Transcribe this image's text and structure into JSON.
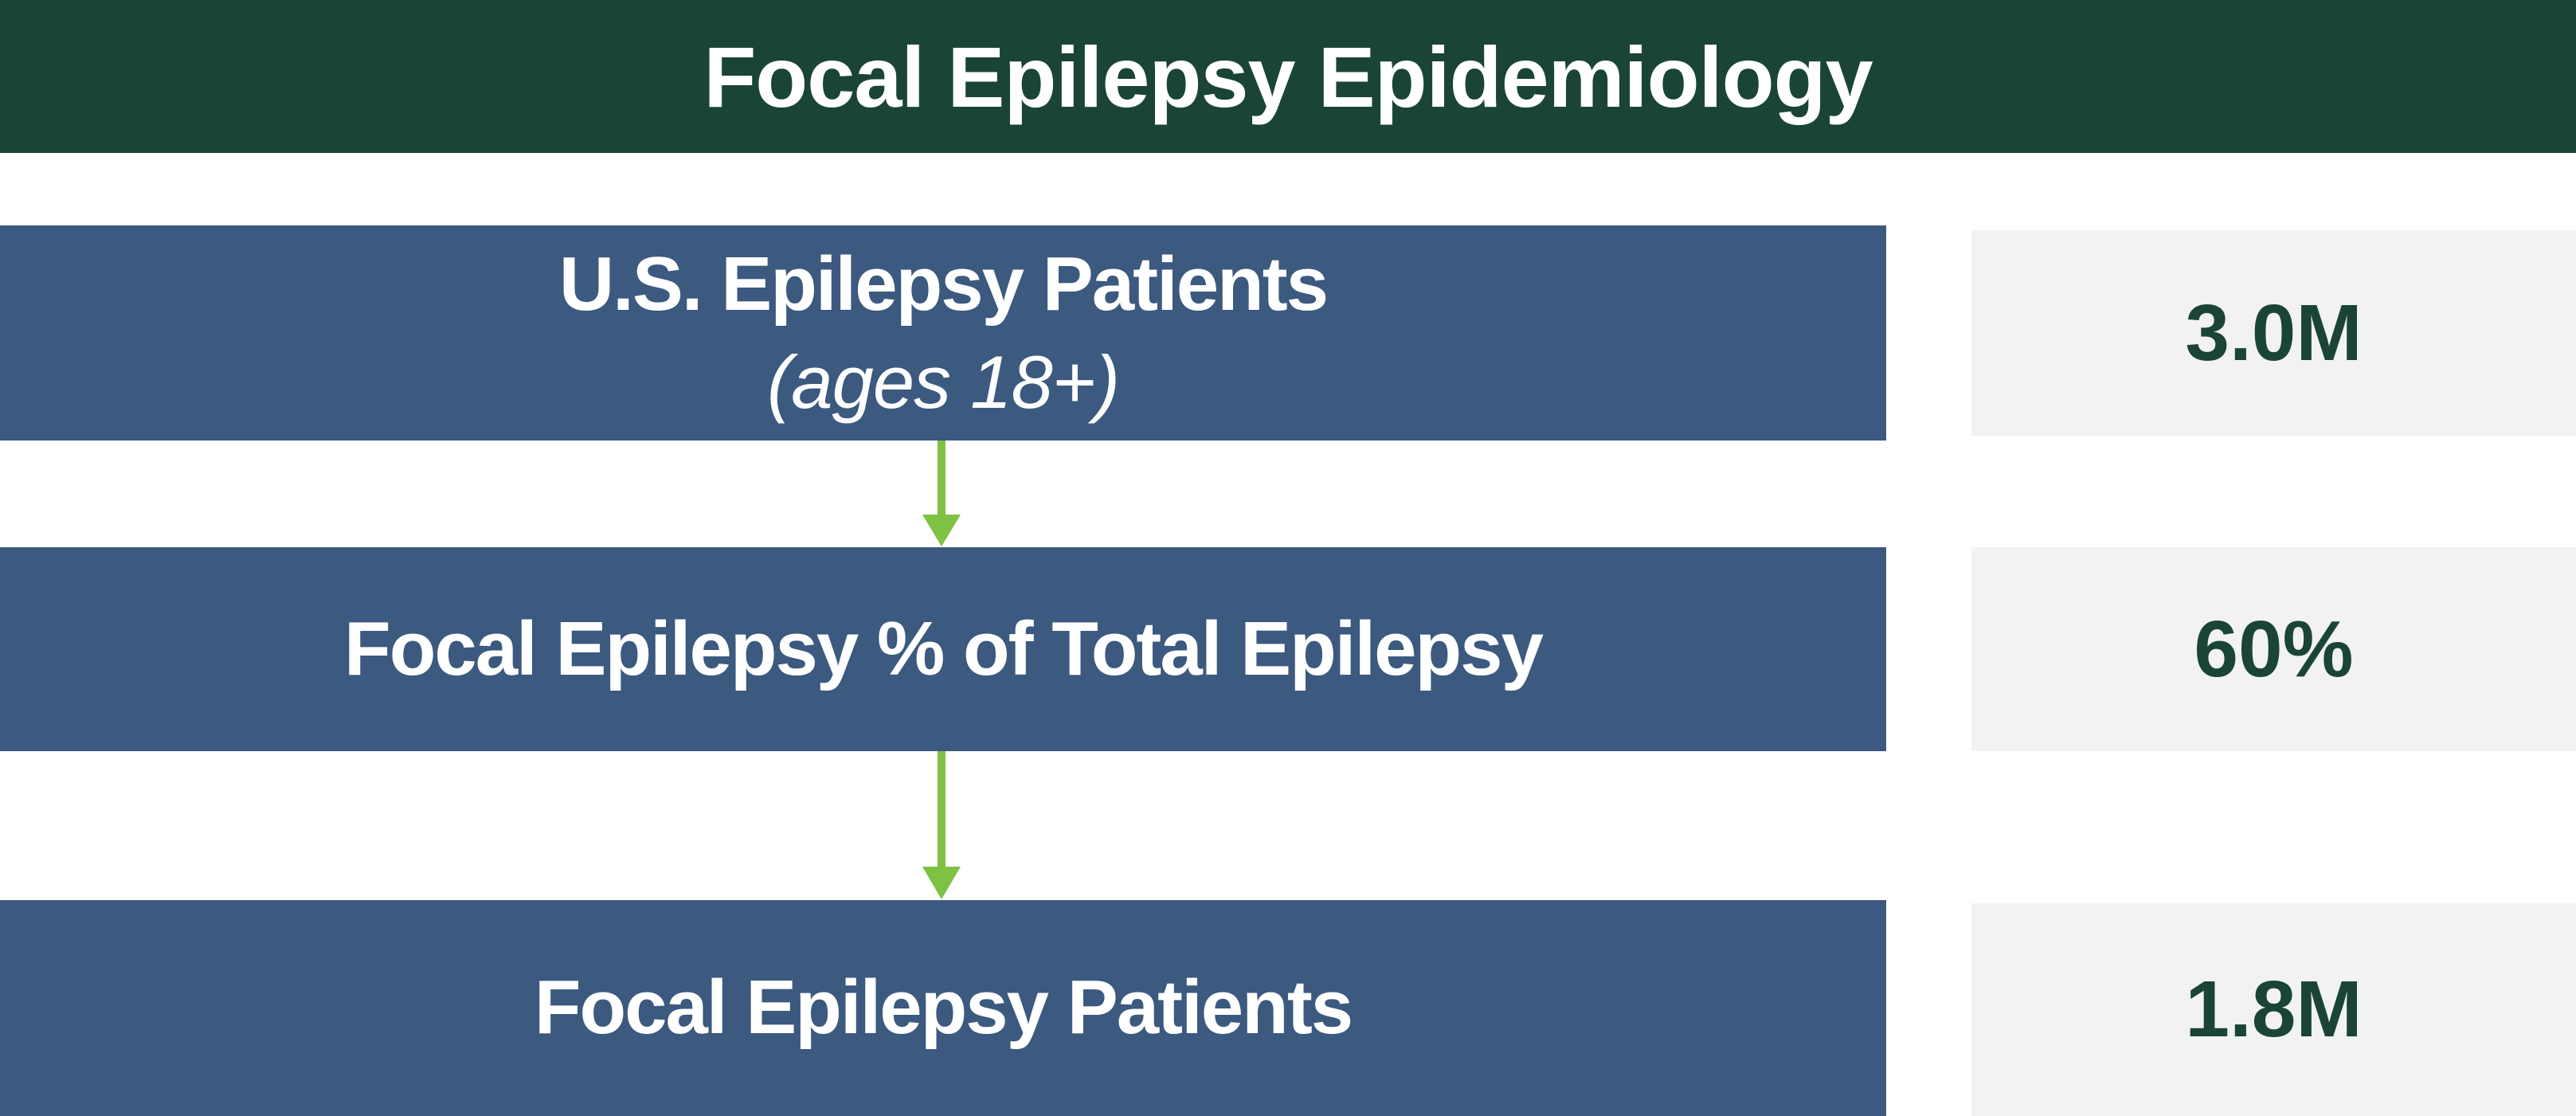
{
  "header": {
    "title": "Focal Epilepsy Epidemiology"
  },
  "rows": [
    {
      "label": "U.S. Epilepsy Patients",
      "sublabel": "(ages 18+)",
      "value": "3.0M"
    },
    {
      "label": "Focal Epilepsy % of Total Epilepsy",
      "value": "60%"
    },
    {
      "label": "Focal Epilepsy Patients",
      "value": "1.8M"
    }
  ]
}
